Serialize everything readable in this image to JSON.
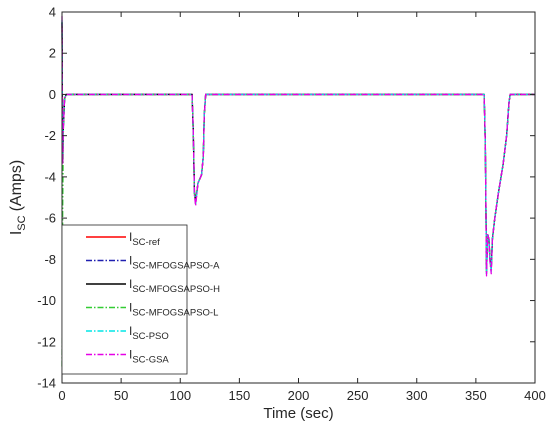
{
  "chart_data": {
    "type": "line",
    "title": "",
    "xlabel": "Time (sec)",
    "ylabel": {
      "main": "I",
      "sub": "SC",
      "unit": "(Amps)"
    },
    "xlim": [
      0,
      400
    ],
    "ylim": [
      -14,
      4
    ],
    "xticks": [
      0,
      50,
      100,
      150,
      200,
      250,
      300,
      350,
      400
    ],
    "yticks": [
      4,
      2,
      0,
      -2,
      -4,
      -6,
      -8,
      -10,
      -12,
      -14
    ],
    "grid": false,
    "legend_position": "bottom-left",
    "series": [
      {
        "label_main": "I",
        "label_sub": "SC-ref",
        "color": "#ff0000",
        "dash": "solid",
        "x": [
          0,
          0.6,
          1.2,
          2.2,
          3.5,
          110,
          111,
          112,
          113,
          115,
          118,
          119.5,
          120.3,
          121.5,
          357,
          358,
          359,
          360,
          361,
          362,
          363,
          364,
          366,
          369,
          373,
          376,
          378,
          379,
          400
        ],
        "y": [
          3.5,
          -3.2,
          -1.5,
          -0.2,
          0,
          0,
          -1.8,
          -4.8,
          -5.2,
          -4.3,
          -3.9,
          -3.0,
          -1.0,
          0,
          0,
          -2.5,
          -8.6,
          -6.8,
          -7.0,
          -8.1,
          -8.4,
          -7.0,
          -6.0,
          -4.8,
          -3.4,
          -2.0,
          -0.4,
          0,
          0
        ]
      },
      {
        "label_main": "I",
        "label_sub": "SC-MFOGSAPSO-A",
        "color": "#1f1fb0",
        "dash": "dashdot",
        "x": [
          0,
          0.6,
          1.2,
          2.2,
          3.5,
          110,
          111,
          112,
          113,
          115,
          118,
          119.5,
          120.3,
          121.5,
          357,
          358,
          359,
          360,
          361,
          362,
          363,
          364,
          366,
          369,
          373,
          376,
          378,
          379,
          400
        ],
        "y": [
          3.5,
          -3.2,
          -1.5,
          -0.2,
          0,
          0,
          -1.8,
          -4.8,
          -5.2,
          -4.3,
          -3.9,
          -3.0,
          -1.0,
          0,
          0,
          -2.5,
          -8.7,
          -6.8,
          -7.0,
          -8.1,
          -8.5,
          -7.0,
          -6.0,
          -4.8,
          -3.4,
          -2.0,
          -0.4,
          0,
          0
        ]
      },
      {
        "label_main": "I",
        "label_sub": "SC-MFOGSAPSO-H",
        "color": "#000000",
        "dash": "solid",
        "x": [
          0,
          0.6,
          1.2,
          2.2,
          3.5,
          110,
          111,
          112,
          113,
          115,
          118,
          119.5,
          120.3,
          121.5,
          357,
          358,
          359,
          360,
          361,
          362,
          363,
          364,
          366,
          369,
          373,
          376,
          378,
          379,
          400
        ],
        "y": [
          3.5,
          -3.3,
          -1.5,
          -0.2,
          0,
          0,
          -1.8,
          -4.7,
          -5.2,
          -4.3,
          -3.9,
          -3.0,
          -1.0,
          0,
          0,
          -2.5,
          -8.5,
          -6.8,
          -7.0,
          -8.0,
          -8.4,
          -7.0,
          -6.0,
          -4.8,
          -3.4,
          -2.0,
          -0.4,
          0,
          0
        ]
      },
      {
        "label_main": "I",
        "label_sub": "SC-MFOGSAPSO-L",
        "color": "#33cc33",
        "dash": "dashdot",
        "x": [
          0,
          0.6,
          1.2,
          2.2,
          3.5,
          110,
          111,
          112,
          113,
          115,
          118,
          119.5,
          120.3,
          121.5,
          357,
          358,
          359,
          360,
          361,
          362,
          363,
          364,
          366,
          369,
          373,
          376,
          378,
          379,
          400
        ],
        "y": [
          -13.2,
          -5.5,
          -1.5,
          -0.2,
          0,
          0,
          -1.8,
          -4.8,
          -5.3,
          -4.3,
          -3.9,
          -3.0,
          -1.0,
          0,
          0,
          -2.5,
          -8.6,
          -6.8,
          -7.0,
          -8.1,
          -8.5,
          -7.0,
          -6.0,
          -4.8,
          -3.4,
          -2.0,
          -0.4,
          0,
          0
        ]
      },
      {
        "label_main": "I",
        "label_sub": "SC-PSO",
        "color": "#00e5e5",
        "dash": "dashdot",
        "x": [
          0,
          0.6,
          1.2,
          2.2,
          3.5,
          110,
          111,
          112,
          113,
          115,
          118,
          119.5,
          120.3,
          121.5,
          357,
          358,
          359,
          360,
          361,
          362,
          363,
          364,
          366,
          369,
          373,
          376,
          378,
          379,
          400
        ],
        "y": [
          3.6,
          -3.2,
          -1.5,
          -0.2,
          0,
          0,
          -1.8,
          -4.8,
          -5.3,
          -4.3,
          -3.9,
          -3.0,
          -1.0,
          0,
          0,
          -2.5,
          -8.7,
          -6.8,
          -7.0,
          -8.1,
          -8.6,
          -7.0,
          -6.0,
          -4.8,
          -3.4,
          -2.0,
          -0.4,
          0,
          0
        ]
      },
      {
        "label_main": "I",
        "label_sub": "SC-GSA",
        "color": "#e600e6",
        "dash": "dashdot",
        "x": [
          0,
          0.6,
          1.2,
          2.2,
          3.5,
          110,
          111,
          112,
          113,
          115,
          118,
          119.5,
          120.3,
          121.5,
          357,
          358,
          359,
          360,
          361,
          362,
          363,
          364,
          366,
          369,
          373,
          376,
          378,
          379,
          400
        ],
        "y": [
          3.8,
          -3.4,
          -1.5,
          -0.2,
          0,
          0,
          -1.8,
          -4.9,
          -5.4,
          -4.3,
          -3.9,
          -3.0,
          -1.0,
          0,
          0,
          -2.5,
          -8.8,
          -6.8,
          -7.0,
          -8.2,
          -8.7,
          -7.0,
          -6.0,
          -4.8,
          -3.4,
          -2.0,
          -0.4,
          0,
          0
        ]
      }
    ]
  }
}
